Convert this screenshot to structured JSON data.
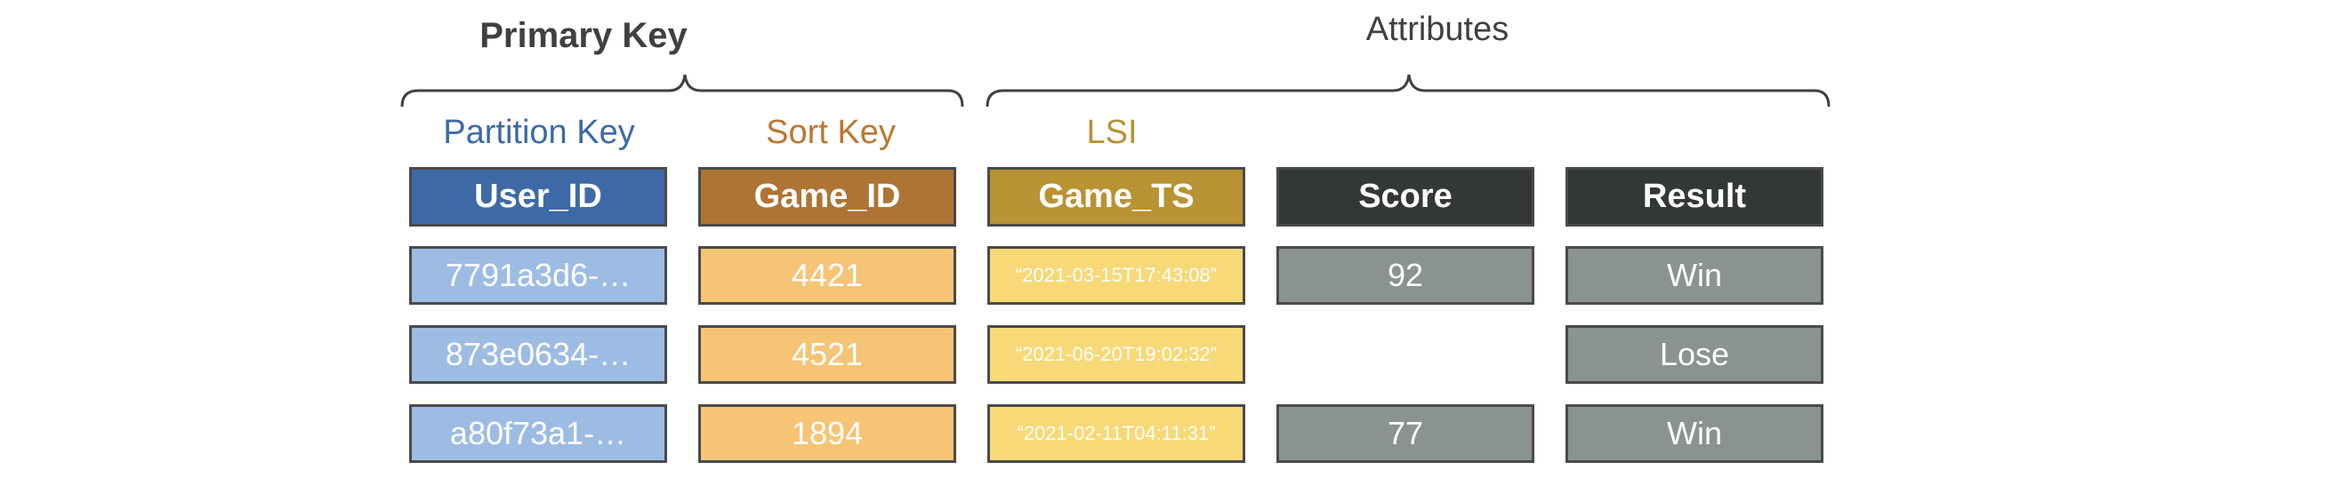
{
  "groups": {
    "primary_key": "Primary Key",
    "attributes": "Attributes"
  },
  "sub_labels": {
    "partition_key": "Partition Key",
    "sort_key": "Sort Key",
    "lsi": "LSI"
  },
  "columns": [
    {
      "key": "user_id",
      "header": "User_ID",
      "header_color": "#3d6aa6",
      "cell_color": "#9dbce4"
    },
    {
      "key": "game_id",
      "header": "Game_ID",
      "header_color": "#ad7434",
      "cell_color": "#f5c475"
    },
    {
      "key": "game_ts",
      "header": "Game_TS",
      "header_color": "#b99234",
      "cell_color": "#f7d977"
    },
    {
      "key": "score",
      "header": "Score",
      "header_color": "#333738",
      "cell_color": "#8b9390"
    },
    {
      "key": "result",
      "header": "Result",
      "header_color": "#333738",
      "cell_color": "#8b9390"
    }
  ],
  "rows": [
    {
      "user_id": "7791a3d6-…",
      "game_id": "4421",
      "game_ts": "“2021-03-15T17:43:08”",
      "score": "92",
      "result": "Win"
    },
    {
      "user_id": "873e0634-…",
      "game_id": "4521",
      "game_ts": "“2021-06-20T19:02:32”",
      "score": null,
      "result": "Lose"
    },
    {
      "user_id": "a80f73a1-…",
      "game_id": "1894",
      "game_ts": "“2021-02-11T04:11:31”",
      "score": "77",
      "result": "Win"
    }
  ],
  "colors": {
    "partition_key_label": "#3d6aa6",
    "sort_key_label": "#b9782f",
    "lsi_label": "#b99234",
    "brace": "#404040",
    "group_text": "#404040"
  }
}
